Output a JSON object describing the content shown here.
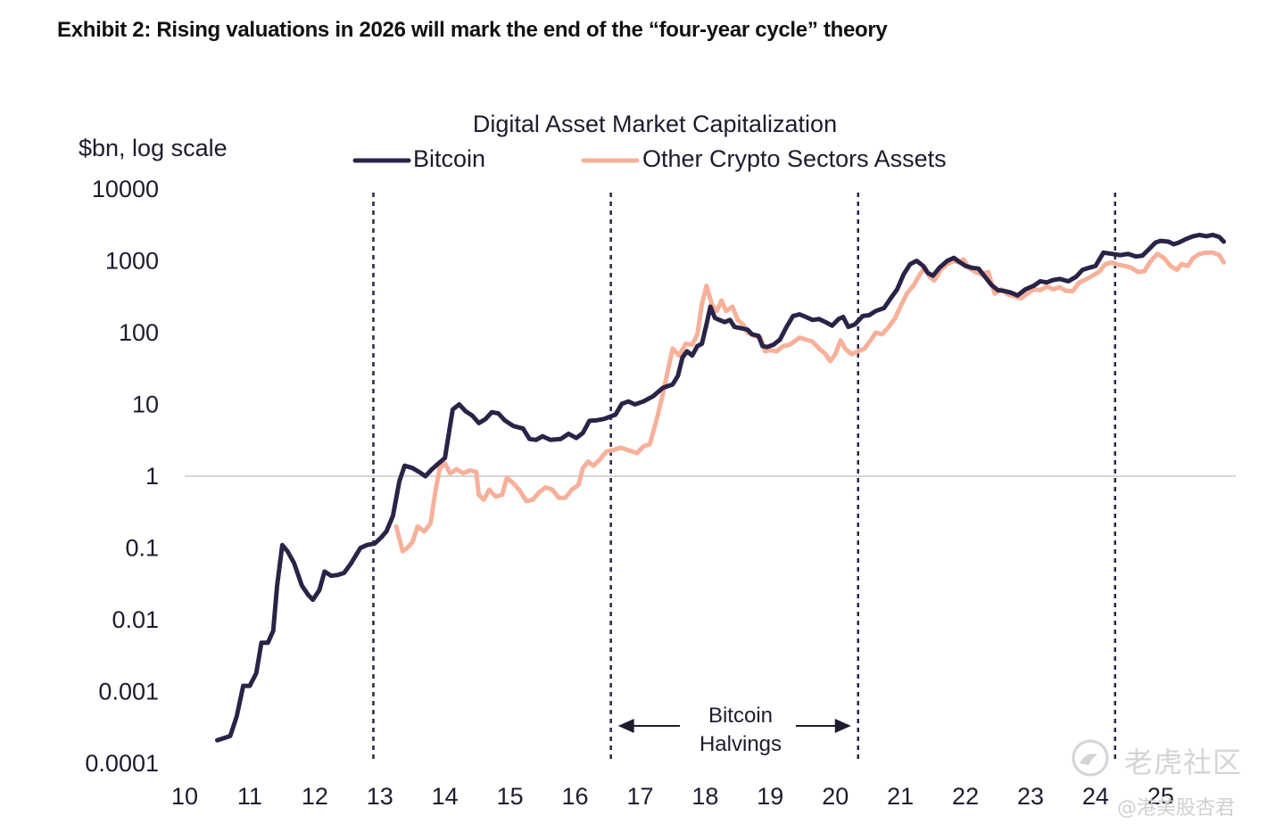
{
  "exhibit_title": "Exhibit 2: Rising valuations in 2026 will mark the end of the “four-year cycle” theory",
  "watermark": {
    "main": "老虎社区",
    "sub": "@港美股杏君"
  },
  "colors": {
    "bitcoin": "#2b2347",
    "other": "#f7b099",
    "gridline": "#d7d7d7",
    "halving": "#2b2347",
    "text": "#1e1b2e"
  },
  "chart_data": {
    "type": "line",
    "title": "Digital Asset Market Capitalization",
    "ylabel": "$bn, log scale",
    "y_scale": "log",
    "ylim": [
      0.0001,
      10000
    ],
    "y_ticks": [
      "10000",
      "1000",
      "100",
      "10",
      "1",
      "0.1",
      "0.01",
      "0.001",
      "0.0001"
    ],
    "xlim": [
      10,
      26.25
    ],
    "x_ticks": [
      "10",
      "11",
      "12",
      "13",
      "14",
      "15",
      "16",
      "17",
      "18",
      "19",
      "20",
      "21",
      "22",
      "23",
      "24",
      "25"
    ],
    "legend_position": "top-center",
    "gridline_at": 1,
    "halvings": [
      12.9,
      16.55,
      20.35,
      24.3
    ],
    "annotation": {
      "text_lines": [
        "Bitcoin",
        "Halvings"
      ],
      "from": 16.55,
      "to": 20.35
    },
    "series": [
      {
        "name": "Bitcoin",
        "color": "#2b2347",
        "points": [
          [
            10.5,
            0.00021
          ],
          [
            10.7,
            0.00024
          ],
          [
            10.8,
            0.00045
          ],
          [
            10.9,
            0.0012
          ],
          [
            11.0,
            0.0012
          ],
          [
            11.1,
            0.0018
          ],
          [
            11.18,
            0.0048
          ],
          [
            11.28,
            0.0048
          ],
          [
            11.36,
            0.007
          ],
          [
            11.42,
            0.03
          ],
          [
            11.5,
            0.11
          ],
          [
            11.58,
            0.09
          ],
          [
            11.68,
            0.062
          ],
          [
            11.8,
            0.03
          ],
          [
            11.9,
            0.022
          ],
          [
            11.97,
            0.019
          ],
          [
            12.07,
            0.026
          ],
          [
            12.15,
            0.047
          ],
          [
            12.25,
            0.041
          ],
          [
            12.35,
            0.042
          ],
          [
            12.45,
            0.045
          ],
          [
            12.55,
            0.06
          ],
          [
            12.7,
            0.1
          ],
          [
            12.8,
            0.11
          ],
          [
            12.92,
            0.115
          ],
          [
            13.02,
            0.14
          ],
          [
            13.1,
            0.17
          ],
          [
            13.2,
            0.28
          ],
          [
            13.3,
            0.85
          ],
          [
            13.38,
            1.4
          ],
          [
            13.5,
            1.3
          ],
          [
            13.6,
            1.15
          ],
          [
            13.7,
            1.0
          ],
          [
            13.8,
            1.25
          ],
          [
            13.9,
            1.5
          ],
          [
            14.0,
            1.8
          ],
          [
            14.07,
            4.5
          ],
          [
            14.12,
            8.5
          ],
          [
            14.22,
            10.0
          ],
          [
            14.32,
            8.0
          ],
          [
            14.42,
            7.0
          ],
          [
            14.52,
            5.5
          ],
          [
            14.62,
            6.2
          ],
          [
            14.72,
            7.8
          ],
          [
            14.82,
            7.5
          ],
          [
            14.92,
            6.0
          ],
          [
            15.05,
            5.0
          ],
          [
            15.2,
            4.6
          ],
          [
            15.3,
            3.3
          ],
          [
            15.4,
            3.2
          ],
          [
            15.5,
            3.6
          ],
          [
            15.62,
            3.2
          ],
          [
            15.78,
            3.3
          ],
          [
            15.9,
            3.9
          ],
          [
            16.02,
            3.4
          ],
          [
            16.12,
            4.0
          ],
          [
            16.22,
            5.9
          ],
          [
            16.32,
            6.0
          ],
          [
            16.45,
            6.3
          ],
          [
            16.62,
            7.2
          ],
          [
            16.72,
            10.2
          ],
          [
            16.82,
            11.0
          ],
          [
            16.92,
            10.0
          ],
          [
            17.05,
            11.0
          ],
          [
            17.2,
            13.0
          ],
          [
            17.35,
            17.0
          ],
          [
            17.5,
            19.0
          ],
          [
            17.58,
            25.0
          ],
          [
            17.65,
            45.0
          ],
          [
            17.72,
            55.0
          ],
          [
            17.8,
            48.0
          ],
          [
            17.88,
            65.0
          ],
          [
            17.95,
            70.0
          ],
          [
            18.02,
            130.0
          ],
          [
            18.08,
            230.0
          ],
          [
            18.15,
            160.0
          ],
          [
            18.22,
            150.0
          ],
          [
            18.3,
            140.0
          ],
          [
            18.38,
            150.0
          ],
          [
            18.45,
            120.0
          ],
          [
            18.55,
            115.0
          ],
          [
            18.65,
            110.0
          ],
          [
            18.72,
            95.0
          ],
          [
            18.82,
            90.0
          ],
          [
            18.88,
            65.0
          ],
          [
            18.95,
            63.0
          ],
          [
            19.05,
            68.0
          ],
          [
            19.15,
            80.0
          ],
          [
            19.25,
            120.0
          ],
          [
            19.35,
            170.0
          ],
          [
            19.45,
            180.0
          ],
          [
            19.55,
            165.0
          ],
          [
            19.65,
            150.0
          ],
          [
            19.75,
            155.0
          ],
          [
            19.85,
            140.0
          ],
          [
            19.95,
            125.0
          ],
          [
            20.05,
            155.0
          ],
          [
            20.12,
            165.0
          ],
          [
            20.2,
            120.0
          ],
          [
            20.3,
            130.0
          ],
          [
            20.42,
            170.0
          ],
          [
            20.52,
            175.0
          ],
          [
            20.62,
            200.0
          ],
          [
            20.75,
            220.0
          ],
          [
            20.85,
            300.0
          ],
          [
            20.95,
            400.0
          ],
          [
            21.05,
            650.0
          ],
          [
            21.15,
            900.0
          ],
          [
            21.25,
            1000.0
          ],
          [
            21.35,
            850.0
          ],
          [
            21.42,
            680.0
          ],
          [
            21.5,
            620.0
          ],
          [
            21.6,
            800.0
          ],
          [
            21.72,
            1000.0
          ],
          [
            21.82,
            1100.0
          ],
          [
            21.92,
            950.0
          ],
          [
            22.0,
            850.0
          ],
          [
            22.1,
            800.0
          ],
          [
            22.2,
            780.0
          ],
          [
            22.3,
            600.0
          ],
          [
            22.4,
            460.0
          ],
          [
            22.5,
            390.0
          ],
          [
            22.6,
            380.0
          ],
          [
            22.7,
            360.0
          ],
          [
            22.8,
            330.0
          ],
          [
            22.92,
            400.0
          ],
          [
            23.05,
            450.0
          ],
          [
            23.15,
            520.0
          ],
          [
            23.25,
            500.0
          ],
          [
            23.35,
            540.0
          ],
          [
            23.45,
            560.0
          ],
          [
            23.58,
            520.0
          ],
          [
            23.7,
            600.0
          ],
          [
            23.8,
            750.0
          ],
          [
            23.9,
            800.0
          ],
          [
            24.0,
            850.0
          ],
          [
            24.12,
            1300.0
          ],
          [
            24.25,
            1250.0
          ],
          [
            24.38,
            1200.0
          ],
          [
            24.5,
            1250.0
          ],
          [
            24.62,
            1150.0
          ],
          [
            24.72,
            1180.0
          ],
          [
            24.82,
            1450.0
          ],
          [
            24.92,
            1800.0
          ],
          [
            25.0,
            1900.0
          ],
          [
            25.12,
            1850.0
          ],
          [
            25.2,
            1700.0
          ],
          [
            25.28,
            1800.0
          ],
          [
            25.38,
            2000.0
          ],
          [
            25.5,
            2200.0
          ],
          [
            25.6,
            2300.0
          ],
          [
            25.7,
            2200.0
          ],
          [
            25.8,
            2300.0
          ],
          [
            25.9,
            2150.0
          ],
          [
            25.97,
            1850.0
          ]
        ]
      },
      {
        "name": "Other Crypto Sectors Assets",
        "color": "#f7b099",
        "points": [
          [
            13.25,
            0.2
          ],
          [
            13.35,
            0.09
          ],
          [
            13.42,
            0.1
          ],
          [
            13.5,
            0.12
          ],
          [
            13.58,
            0.2
          ],
          [
            13.68,
            0.17
          ],
          [
            13.78,
            0.22
          ],
          [
            13.85,
            0.6
          ],
          [
            13.92,
            1.3
          ],
          [
            14.0,
            1.5
          ],
          [
            14.08,
            1.1
          ],
          [
            14.18,
            1.25
          ],
          [
            14.28,
            1.1
          ],
          [
            14.38,
            1.2
          ],
          [
            14.48,
            1.15
          ],
          [
            14.52,
            0.55
          ],
          [
            14.6,
            0.47
          ],
          [
            14.68,
            0.65
          ],
          [
            14.78,
            0.52
          ],
          [
            14.88,
            0.55
          ],
          [
            14.95,
            0.95
          ],
          [
            15.05,
            0.8
          ],
          [
            15.15,
            0.63
          ],
          [
            15.25,
            0.45
          ],
          [
            15.35,
            0.47
          ],
          [
            15.45,
            0.6
          ],
          [
            15.55,
            0.7
          ],
          [
            15.65,
            0.65
          ],
          [
            15.75,
            0.5
          ],
          [
            15.85,
            0.5
          ],
          [
            15.95,
            0.65
          ],
          [
            16.05,
            0.75
          ],
          [
            16.12,
            1.3
          ],
          [
            16.2,
            1.6
          ],
          [
            16.28,
            1.4
          ],
          [
            16.38,
            1.7
          ],
          [
            16.48,
            2.2
          ],
          [
            16.58,
            2.3
          ],
          [
            16.7,
            2.5
          ],
          [
            16.82,
            2.3
          ],
          [
            16.95,
            2.1
          ],
          [
            17.05,
            2.6
          ],
          [
            17.15,
            2.8
          ],
          [
            17.25,
            6.0
          ],
          [
            17.35,
            14.0
          ],
          [
            17.42,
            28.0
          ],
          [
            17.5,
            60.0
          ],
          [
            17.6,
            48.0
          ],
          [
            17.7,
            70.0
          ],
          [
            17.8,
            68.0
          ],
          [
            17.88,
            95.0
          ],
          [
            17.95,
            250.0
          ],
          [
            18.02,
            450.0
          ],
          [
            18.1,
            250.0
          ],
          [
            18.18,
            200.0
          ],
          [
            18.25,
            280.0
          ],
          [
            18.32,
            200.0
          ],
          [
            18.42,
            230.0
          ],
          [
            18.5,
            150.0
          ],
          [
            18.58,
            130.0
          ],
          [
            18.65,
            100.0
          ],
          [
            18.75,
            90.0
          ],
          [
            18.85,
            85.0
          ],
          [
            18.92,
            55.0
          ],
          [
            19.0,
            57.0
          ],
          [
            19.1,
            55.0
          ],
          [
            19.2,
            65.0
          ],
          [
            19.3,
            68.0
          ],
          [
            19.45,
            85.0
          ],
          [
            19.55,
            80.0
          ],
          [
            19.65,
            75.0
          ],
          [
            19.75,
            60.0
          ],
          [
            19.85,
            50.0
          ],
          [
            19.92,
            40.0
          ],
          [
            20.0,
            50.0
          ],
          [
            20.08,
            78.0
          ],
          [
            20.15,
            60.0
          ],
          [
            20.25,
            50.0
          ],
          [
            20.35,
            55.0
          ],
          [
            20.45,
            60.0
          ],
          [
            20.55,
            80.0
          ],
          [
            20.62,
            100.0
          ],
          [
            20.72,
            95.0
          ],
          [
            20.82,
            120.0
          ],
          [
            20.92,
            160.0
          ],
          [
            21.0,
            230.0
          ],
          [
            21.1,
            350.0
          ],
          [
            21.2,
            450.0
          ],
          [
            21.3,
            650.0
          ],
          [
            21.38,
            800.0
          ],
          [
            21.45,
            600.0
          ],
          [
            21.52,
            530.0
          ],
          [
            21.62,
            750.0
          ],
          [
            21.72,
            900.0
          ],
          [
            21.82,
            1000.0
          ],
          [
            21.9,
            950.0
          ],
          [
            21.97,
            1050.0
          ],
          [
            22.05,
            800.0
          ],
          [
            22.15,
            700.0
          ],
          [
            22.25,
            650.0
          ],
          [
            22.35,
            700.0
          ],
          [
            22.45,
            350.0
          ],
          [
            22.55,
            400.0
          ],
          [
            22.65,
            340.0
          ],
          [
            22.75,
            320.0
          ],
          [
            22.85,
            300.0
          ],
          [
            22.95,
            350.0
          ],
          [
            23.05,
            400.0
          ],
          [
            23.15,
            390.0
          ],
          [
            23.25,
            440.0
          ],
          [
            23.35,
            400.0
          ],
          [
            23.45,
            430.0
          ],
          [
            23.55,
            380.0
          ],
          [
            23.65,
            380.0
          ],
          [
            23.75,
            500.0
          ],
          [
            23.85,
            550.0
          ],
          [
            23.95,
            620.0
          ],
          [
            24.05,
            700.0
          ],
          [
            24.15,
            900.0
          ],
          [
            24.25,
            950.0
          ],
          [
            24.35,
            880.0
          ],
          [
            24.45,
            850.0
          ],
          [
            24.55,
            800.0
          ],
          [
            24.65,
            700.0
          ],
          [
            24.75,
            720.0
          ],
          [
            24.85,
            1000.0
          ],
          [
            24.95,
            1250.0
          ],
          [
            25.05,
            1100.0
          ],
          [
            25.15,
            850.0
          ],
          [
            25.25,
            750.0
          ],
          [
            25.32,
            900.0
          ],
          [
            25.42,
            850.0
          ],
          [
            25.5,
            1100.0
          ],
          [
            25.6,
            1250.0
          ],
          [
            25.7,
            1300.0
          ],
          [
            25.8,
            1300.0
          ],
          [
            25.9,
            1200.0
          ],
          [
            25.97,
            950.0
          ]
        ]
      }
    ]
  }
}
